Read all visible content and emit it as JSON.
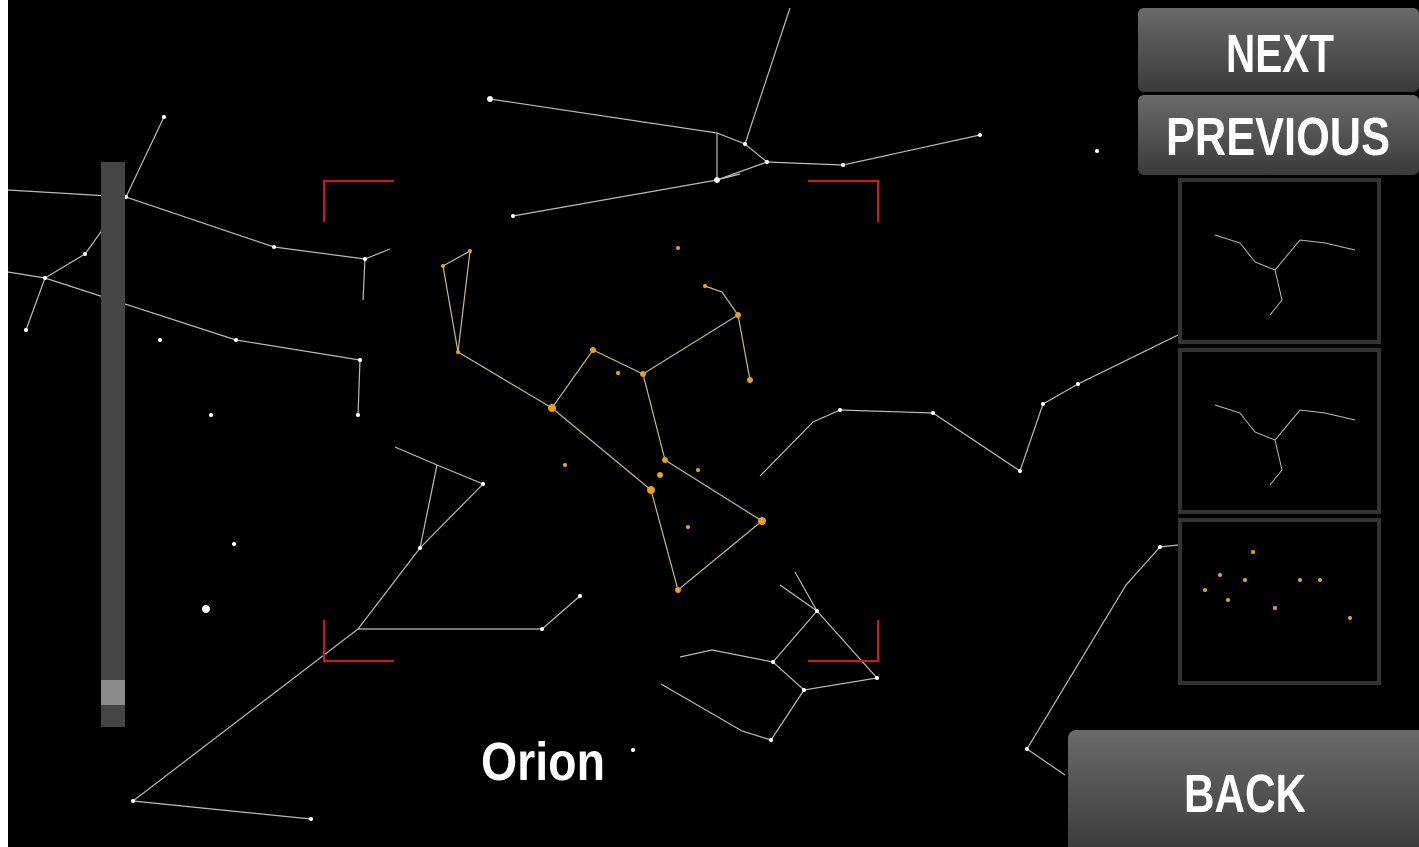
{
  "buttons": {
    "next": "NEXT",
    "previous": "PREVIOUS",
    "back": "BACK"
  },
  "constellation_name": "Orion"
}
